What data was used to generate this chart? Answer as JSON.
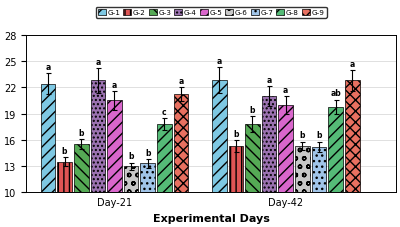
{
  "groups": [
    "G-1",
    "G-2",
    "G-3",
    "G-4",
    "G-5",
    "G-6",
    "G-7",
    "G-8",
    "G-9"
  ],
  "days": [
    "Day-21",
    "Day-42"
  ],
  "values": {
    "Day-21": [
      22.4,
      13.5,
      15.5,
      22.8,
      20.5,
      13.0,
      13.3,
      17.8,
      21.2
    ],
    "Day-42": [
      22.8,
      15.3,
      17.8,
      21.0,
      20.0,
      15.3,
      15.2,
      19.8,
      22.8
    ]
  },
  "errors": {
    "Day-21": [
      1.2,
      0.5,
      0.6,
      1.4,
      1.1,
      0.4,
      0.5,
      0.7,
      0.8
    ],
    "Day-42": [
      1.5,
      0.7,
      0.9,
      1.1,
      1.0,
      0.5,
      0.6,
      0.8,
      1.2
    ]
  },
  "letters": {
    "Day-21": [
      "a",
      "b",
      "b",
      "a",
      "a",
      "b",
      "b",
      "c",
      "a"
    ],
    "Day-42": [
      "a",
      "b",
      "b",
      "a",
      "a",
      "b",
      "b",
      "ab",
      "a"
    ]
  },
  "colors": [
    "#7ec8e3",
    "#e05555",
    "#55aa55",
    "#9b72b0",
    "#d966cc",
    "#c8c8c8",
    "#a0c4e8",
    "#55bb77",
    "#e87060"
  ],
  "hatches": [
    "/",
    "H",
    "//",
    ".",
    "\\",
    "o",
    "//",
    "//",
    "x"
  ],
  "ylim": [
    10,
    28
  ],
  "yticks": [
    10,
    13,
    16,
    19,
    22,
    25,
    28
  ],
  "xlabel": "Experimental Days",
  "day_labels": [
    "Day-21",
    "Day-42"
  ],
  "figsize": [
    4.0,
    2.28
  ],
  "dpi": 100,
  "bar_width": 0.068,
  "day_centers": [
    0.4,
    1.1
  ]
}
